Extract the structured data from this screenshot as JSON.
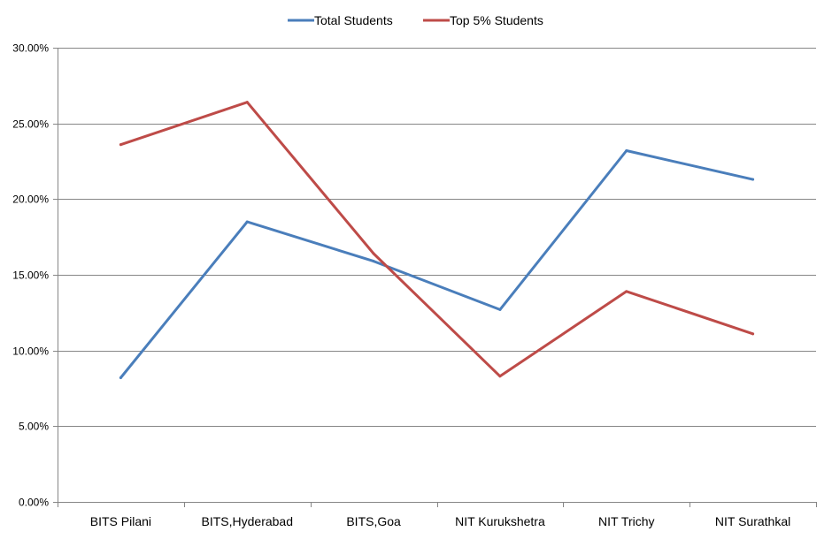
{
  "chart_data": {
    "type": "line",
    "categories": [
      "BITS Pilani",
      "BITS,Hyderabad",
      "BITS,Goa",
      "NIT Kurukshetra",
      "NIT Trichy",
      "NIT Surathkal"
    ],
    "series": [
      {
        "name": "Total Students",
        "color": "#4a7ebb",
        "values": [
          8.2,
          18.5,
          15.9,
          12.7,
          23.2,
          21.3
        ]
      },
      {
        "name": "Top 5% Students",
        "color": "#be4b48",
        "values": [
          23.6,
          26.4,
          16.4,
          8.3,
          13.9,
          11.1
        ]
      }
    ],
    "ylim": [
      0,
      30
    ],
    "yticks": [
      0,
      5,
      10,
      15,
      20,
      25,
      30
    ],
    "ytick_labels": [
      "0.00%",
      "5.00%",
      "10.00%",
      "15.00%",
      "20.00%",
      "25.00%",
      "30.00%"
    ],
    "grid": true,
    "legend_position": "top-center",
    "title": "",
    "xlabel": "",
    "ylabel": ""
  }
}
